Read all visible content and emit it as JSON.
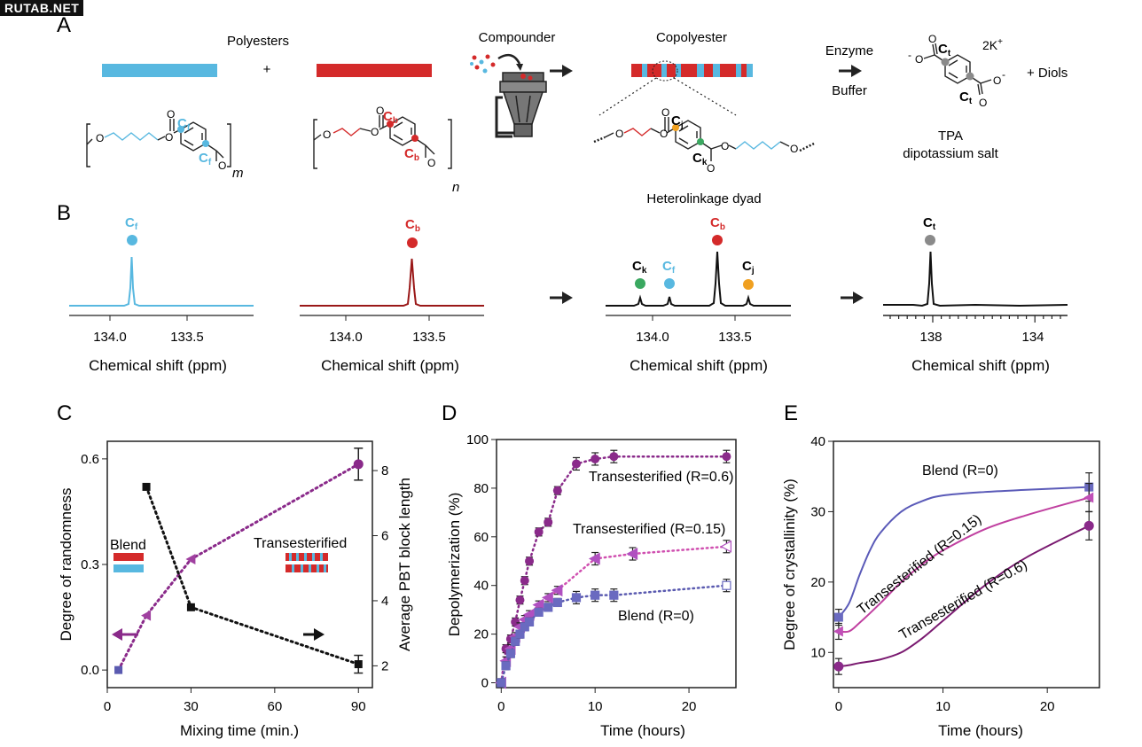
{
  "watermark": "RUTAB.NET",
  "colors": {
    "blue": "#58b8e0",
    "red": "#d42a2a",
    "darkred": "#9a1818",
    "green": "#3aa860",
    "orange": "#f0a020",
    "gray": "#8a8a8a",
    "purple": "#8a2a8a",
    "lilac": "#5a5ab0",
    "pink": "#d050b0"
  },
  "panelA": {
    "label": "A",
    "polyesters": "Polyesters",
    "plus": "+",
    "compounder": "Compounder",
    "copolyester": "Copolyester",
    "enzyme": "Enzyme",
    "buffer": "Buffer",
    "plus_diols": "+  Diols",
    "tpa_line1": "TPA",
    "tpa_line2": "dipotassium salt",
    "heterolinkage": "Heterolinkage dyad",
    "pbt_sub_m": "m",
    "pet_sub_n": "n",
    "k_label": "2K",
    "k_sup": "+",
    "c_letter": "C",
    "sub_f": "f",
    "sub_b": "b",
    "sub_j": "j",
    "sub_k": "k",
    "sub_t": "t",
    "o": "O",
    "minus": "-"
  },
  "panelB": {
    "label": "B",
    "xlabel": "Chemical shift (ppm)",
    "spectra": [
      {
        "peak_label_sub": "f",
        "ticks": [
          "134.0",
          "133.5"
        ]
      },
      {
        "peak_label_sub": "b",
        "ticks": [
          "134.0",
          "133.5"
        ]
      },
      {
        "peak_labels": [
          "k",
          "f",
          "b",
          "j"
        ],
        "ticks": [
          "134.0",
          "133.5"
        ]
      },
      {
        "peak_label_sub": "t",
        "ticks": [
          "138",
          "134"
        ]
      }
    ]
  },
  "chart_data": [
    {
      "panel": "C",
      "type": "line",
      "xlabel": "Mixing time (min.)",
      "ylabel": "Degree of randomness",
      "y2label": "Average PBT block length",
      "xlim": [
        0,
        95
      ],
      "ylim": [
        -0.05,
        0.65
      ],
      "y2lim": [
        1.33,
        8.9
      ],
      "xticks": [
        0,
        30,
        60,
        90
      ],
      "yticks": [
        "0.0",
        "0.3",
        "0.6"
      ],
      "y2ticks": [
        "2",
        "4",
        "6",
        "8"
      ],
      "legend": {
        "blend": "Blend",
        "trans": "Transesterified"
      },
      "series": [
        {
          "axis": "left",
          "x": [
            4,
            14,
            30,
            90
          ],
          "y": [
            0.0,
            0.155,
            0.315,
            0.585
          ]
        },
        {
          "axis": "right",
          "x": [
            14,
            30,
            90
          ],
          "y": [
            7.5,
            3.8,
            2.05
          ]
        }
      ]
    },
    {
      "panel": "D",
      "type": "line",
      "xlabel": "Time (hours)",
      "ylabel": "Depolymerization (%)",
      "xlim": [
        -0.5,
        25
      ],
      "ylim": [
        -2,
        100
      ],
      "xticks": [
        0,
        10,
        20
      ],
      "yticks": [
        0,
        20,
        40,
        60,
        80,
        100
      ],
      "annotations": [
        "Transesterified (R=0.6)",
        "Transesterified (R=0.15)",
        "Blend (R=0)"
      ],
      "series": [
        {
          "name": "Transesterified (R=0.6)",
          "x": [
            0,
            0.5,
            1,
            1.5,
            2,
            2.5,
            3,
            4,
            5,
            6,
            8,
            10,
            12,
            24
          ],
          "y": [
            0,
            14,
            18,
            25,
            34,
            42,
            50,
            62,
            66,
            79,
            90,
            92,
            93,
            93
          ]
        },
        {
          "name": "Transesterified (R=0.15)",
          "x": [
            0,
            0.5,
            1,
            1.5,
            2,
            2.5,
            3,
            4,
            5,
            6,
            10,
            14,
            24
          ],
          "y": [
            0,
            9,
            14,
            19,
            23,
            26,
            28,
            32,
            35,
            38,
            51,
            53,
            56
          ]
        },
        {
          "name": "Blend (R=0)",
          "x": [
            0,
            0.5,
            1,
            1.5,
            2,
            2.5,
            3,
            4,
            5,
            6,
            8,
            10,
            12,
            24
          ],
          "y": [
            0,
            7,
            12,
            17,
            20,
            23,
            25,
            29,
            31,
            33,
            35,
            36,
            36,
            40
          ]
        }
      ]
    },
    {
      "panel": "E",
      "type": "line",
      "xlabel": "Time (hours)",
      "ylabel": "Degree of crystallinity (%)",
      "xlim": [
        -0.5,
        25
      ],
      "ylim": [
        5,
        40
      ],
      "xticks": [
        0,
        10,
        20
      ],
      "yticks": [
        10,
        20,
        30,
        40
      ],
      "annotations": [
        "Blend (R=0)",
        "Transesterified (R=0.15)",
        "Transesterified (R=0.6)"
      ],
      "series": [
        {
          "name": "Blend (R=0)",
          "x": [
            0,
            1,
            2,
            3,
            4,
            6,
            8,
            10,
            14,
            18,
            24
          ],
          "y": [
            15,
            17,
            21,
            24.5,
            27,
            30,
            31.5,
            32.3,
            32.8,
            33.1,
            33.5
          ]
        },
        {
          "name": "Transesterified (R=0.15)",
          "x": [
            0,
            1,
            2,
            4,
            6,
            8,
            10,
            14,
            18,
            24
          ],
          "y": [
            13,
            13,
            14.2,
            17,
            20,
            22.5,
            24.5,
            27.5,
            29.5,
            32
          ]
        },
        {
          "name": "Transesterified (R=0.6)",
          "x": [
            0,
            1,
            2,
            4,
            6,
            8,
            10,
            14,
            18,
            24
          ],
          "y": [
            8,
            8.2,
            8.5,
            9,
            10,
            12,
            14.5,
            19.5,
            23.5,
            28
          ]
        }
      ]
    }
  ]
}
